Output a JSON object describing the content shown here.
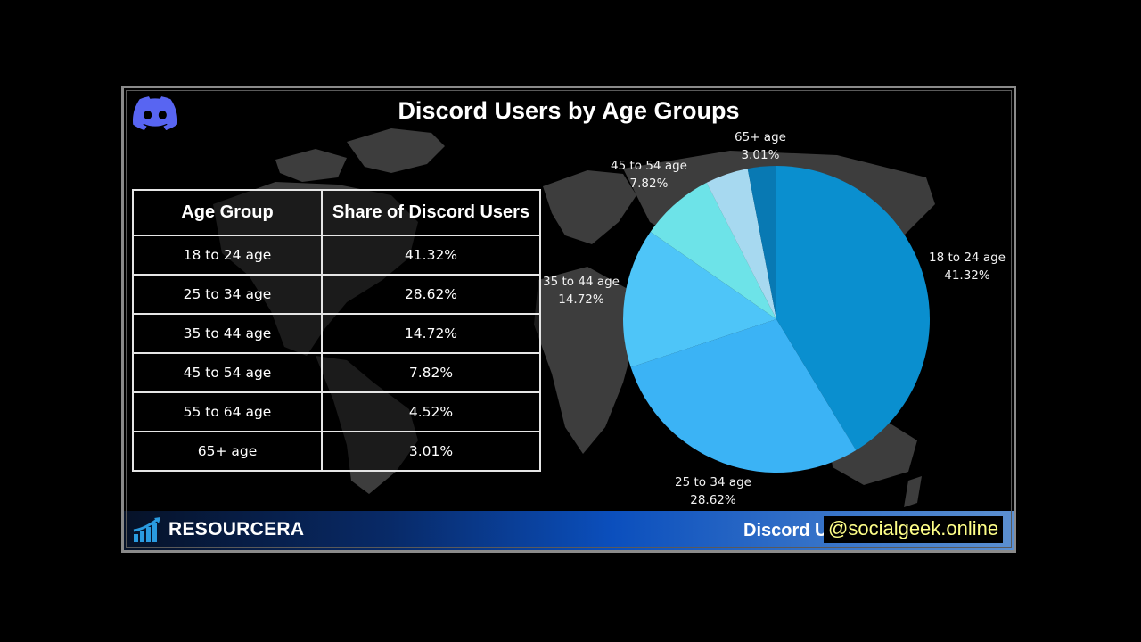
{
  "header": {
    "title": "Discord Users by Age Groups",
    "logo_icon": "discord-logo-icon",
    "logo_color": "#5865F2"
  },
  "table": {
    "headers": [
      "Age Group",
      "Share of Discord Users"
    ],
    "rows": [
      [
        "18 to 24 age",
        "41.32%"
      ],
      [
        "25 to 34 age",
        "28.62%"
      ],
      [
        "35 to 44 age",
        "14.72%"
      ],
      [
        "45 to 54 age",
        "7.82%"
      ],
      [
        "55 to 64 age",
        "4.52%"
      ],
      [
        "65+ age",
        "3.01%"
      ]
    ]
  },
  "pie_labels": [
    {
      "name": "18 to 24 age",
      "value": "41.32%"
    },
    {
      "name": "25 to 34 age",
      "value": "28.62%"
    },
    {
      "name": "35 to 44 age",
      "value": "14.72%"
    },
    {
      "name": "45 to 54 age",
      "value": "7.82%"
    },
    {
      "name": "65+ age",
      "value": "3.01%"
    }
  ],
  "footer": {
    "brand": "RESOURCERA",
    "brand_icon": "bar-chart-growth-icon",
    "caption": "Discord U",
    "watermark": "@socialgeek.online"
  },
  "chart_data": {
    "type": "pie",
    "title": "Discord Users by Age Groups",
    "categories": [
      "18 to 24 age",
      "25 to 34 age",
      "35 to 44 age",
      "45 to 54 age",
      "55 to 64 age",
      "65+ age"
    ],
    "values": [
      41.32,
      28.62,
      14.72,
      7.82,
      4.52,
      3.01
    ],
    "colors": [
      "#0A8FCF",
      "#3BB3F5",
      "#4EC5F8",
      "#6DE3E8",
      "#A7D9F0",
      "#0879B3"
    ],
    "unit": "%",
    "start_angle": "12 o'clock",
    "direction": "clockwise",
    "data_labels": true,
    "legend": "none"
  }
}
